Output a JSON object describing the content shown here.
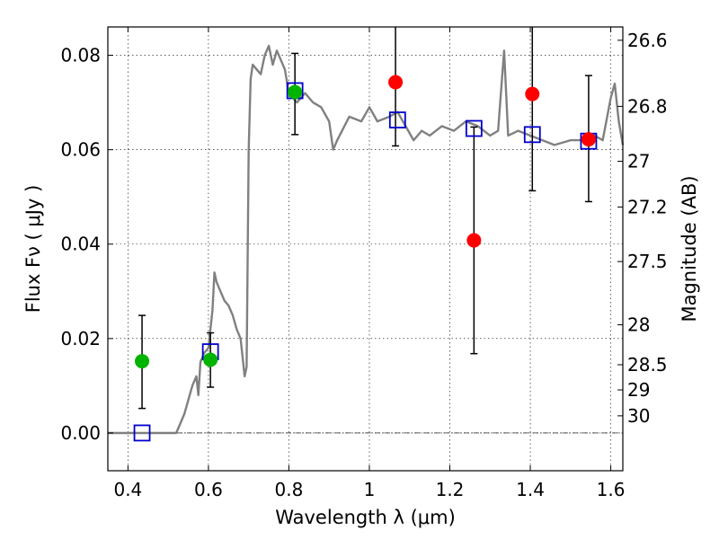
{
  "chart_data": {
    "type": "scatter",
    "xlabel": "Wavelength  λ (μm)",
    "ylabel": "Flux  Fν  ( μJy )",
    "ylabel_right": "Magnitude (AB)",
    "xlim": [
      0.35,
      1.63
    ],
    "ylim": [
      -0.008,
      0.086
    ],
    "grid": true,
    "x_ticks": [
      0.4,
      0.6,
      0.8,
      1.0,
      1.2,
      1.4,
      1.6
    ],
    "x_tick_labels": [
      "0.4",
      "0.6",
      "0.8",
      "1",
      "1.2",
      "1.4",
      "1.6"
    ],
    "y_ticks": [
      0.0,
      0.02,
      0.04,
      0.06,
      0.08
    ],
    "y_tick_labels": [
      "0.00",
      "0.02",
      "0.04",
      "0.06",
      "0.08"
    ],
    "mag_ticks": [
      26.6,
      26.8,
      27.0,
      27.2,
      27.5,
      28.0,
      28.5,
      29.0,
      30.0
    ],
    "mag_tick_labels": [
      "26.6",
      "26.8",
      "27",
      "27.2",
      "27.5",
      "28",
      "28.5",
      "29",
      "30"
    ],
    "template_spectrum": {
      "color": "#808080",
      "points": [
        [
          0.35,
          0.0
        ],
        [
          0.52,
          0.0
        ],
        [
          0.54,
          0.004
        ],
        [
          0.56,
          0.01
        ],
        [
          0.57,
          0.012
        ],
        [
          0.575,
          0.008
        ],
        [
          0.58,
          0.015
        ],
        [
          0.59,
          0.017
        ],
        [
          0.6,
          0.018
        ],
        [
          0.61,
          0.026
        ],
        [
          0.615,
          0.034
        ],
        [
          0.62,
          0.032
        ],
        [
          0.63,
          0.03
        ],
        [
          0.64,
          0.028
        ],
        [
          0.65,
          0.027
        ],
        [
          0.66,
          0.025
        ],
        [
          0.67,
          0.022
        ],
        [
          0.68,
          0.02
        ],
        [
          0.69,
          0.012
        ],
        [
          0.695,
          0.014
        ],
        [
          0.7,
          0.06
        ],
        [
          0.705,
          0.075
        ],
        [
          0.71,
          0.078
        ],
        [
          0.72,
          0.077
        ],
        [
          0.73,
          0.076
        ],
        [
          0.74,
          0.08
        ],
        [
          0.75,
          0.082
        ],
        [
          0.76,
          0.078
        ],
        [
          0.77,
          0.081
        ],
        [
          0.78,
          0.079
        ],
        [
          0.79,
          0.077
        ],
        [
          0.8,
          0.072
        ],
        [
          0.82,
          0.07
        ],
        [
          0.84,
          0.072
        ],
        [
          0.86,
          0.07
        ],
        [
          0.88,
          0.069
        ],
        [
          0.9,
          0.066
        ],
        [
          0.91,
          0.06
        ],
        [
          0.92,
          0.062
        ],
        [
          0.95,
          0.067
        ],
        [
          0.98,
          0.066
        ],
        [
          1.0,
          0.069
        ],
        [
          1.02,
          0.066
        ],
        [
          1.05,
          0.067
        ],
        [
          1.07,
          0.068
        ],
        [
          1.09,
          0.065
        ],
        [
          1.11,
          0.062
        ],
        [
          1.13,
          0.064
        ],
        [
          1.15,
          0.063
        ],
        [
          1.18,
          0.065
        ],
        [
          1.21,
          0.064
        ],
        [
          1.24,
          0.066
        ],
        [
          1.27,
          0.065
        ],
        [
          1.3,
          0.063
        ],
        [
          1.32,
          0.064
        ],
        [
          1.335,
          0.081
        ],
        [
          1.345,
          0.063
        ],
        [
          1.37,
          0.064
        ],
        [
          1.4,
          0.063
        ],
        [
          1.43,
          0.062
        ],
        [
          1.46,
          0.061
        ],
        [
          1.5,
          0.062
        ],
        [
          1.53,
          0.062
        ],
        [
          1.56,
          0.063
        ],
        [
          1.58,
          0.062
        ],
        [
          1.6,
          0.071
        ],
        [
          1.61,
          0.074
        ],
        [
          1.62,
          0.066
        ],
        [
          1.63,
          0.061
        ]
      ]
    },
    "series": [
      {
        "marker": "square",
        "color": "#0000cc",
        "x": [
          0.435,
          0.605,
          0.815,
          1.07,
          1.26,
          1.405,
          1.545
        ],
        "y": [
          0.0,
          0.0172,
          0.0725,
          0.0663,
          0.0645,
          0.0632,
          0.0618
        ]
      },
      {
        "marker": "circle",
        "color": "#00b400",
        "x": [
          0.435,
          0.605,
          0.815
        ],
        "y": [
          0.0152,
          0.0155,
          0.0722
        ],
        "yerr_low": [
          0.0052,
          0.0097,
          0.0632
        ],
        "yerr_high": [
          0.0249,
          0.0212,
          0.0804
        ]
      },
      {
        "marker": "circle",
        "color": "#ff0000",
        "x": [
          1.065,
          1.26,
          1.405,
          1.545
        ],
        "y": [
          0.0743,
          0.0408,
          0.0718,
          0.0622
        ],
        "yerr_low": [
          0.0608,
          0.0168,
          0.0513,
          0.049
        ],
        "yerr_high": [
          0.086,
          0.0648,
          0.086,
          0.0757
        ]
      }
    ]
  }
}
